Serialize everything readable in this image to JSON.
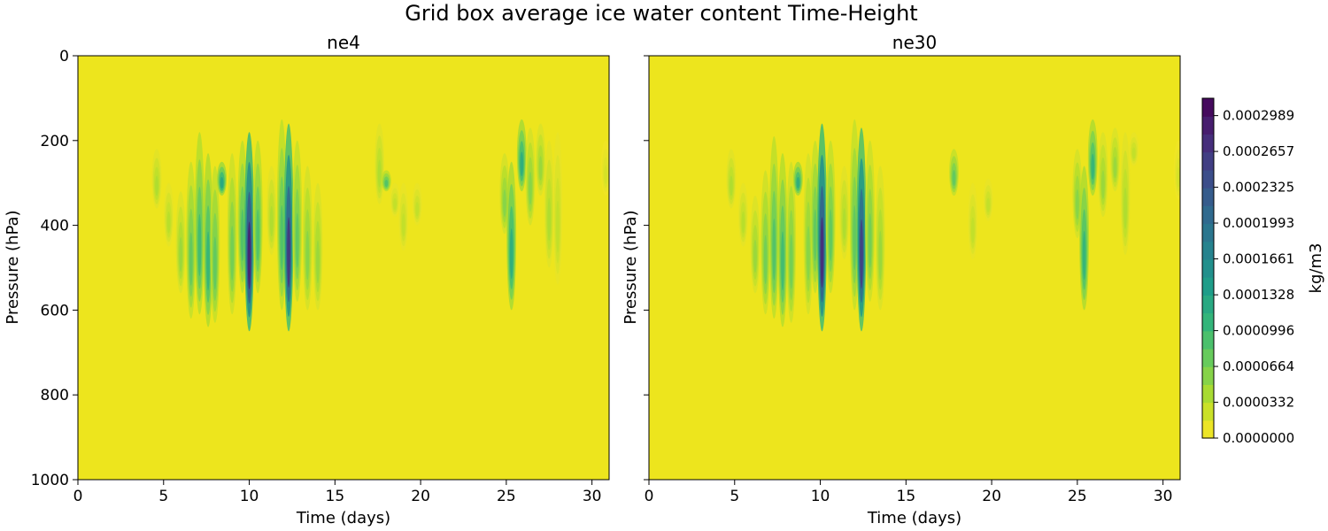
{
  "chart_data": {
    "type": "heatmap",
    "title": "Grid box average ice water content Time-Height",
    "colorbar": {
      "label": "kg/m3",
      "levels": [
        "0.0000000",
        "0.0000332",
        "0.0000664",
        "0.0000996",
        "0.0001328",
        "0.0001661",
        "0.0001993",
        "0.0002325",
        "0.0002657",
        "0.0002989"
      ],
      "level_values": [
        0.0,
        3.32e-05,
        6.64e-05,
        9.96e-05,
        0.0001328,
        0.0001661,
        0.0001993,
        0.0002325,
        0.0002657,
        0.0002989
      ],
      "max": 0.000315,
      "colormap": "viridis (reversed)"
    },
    "x_axis": {
      "label": "Time (days)",
      "lim": [
        0,
        31
      ],
      "ticks": [
        0,
        5,
        10,
        15,
        20,
        25,
        30
      ],
      "tick_labels": [
        "0",
        "5",
        "10",
        "15",
        "20",
        "25",
        "30"
      ]
    },
    "y_axis": {
      "label": "Pressure (hPa)",
      "lim": [
        0,
        1000
      ],
      "inverted": true,
      "ticks": [
        0,
        200,
        400,
        600,
        800,
        1000
      ],
      "tick_labels": [
        "0",
        "200",
        "400",
        "600",
        "800",
        "1000"
      ]
    },
    "background_value": 0.0,
    "panels": [
      {
        "name": "ne4",
        "features": [
          {
            "x": 4.6,
            "p": [
              220,
              360
            ],
            "peak": 4e-05
          },
          {
            "x": 5.3,
            "p": [
              300,
              450
            ],
            "peak": 3.5e-05
          },
          {
            "x": 6.0,
            "p": [
              320,
              560
            ],
            "peak": 5e-05
          },
          {
            "x": 6.6,
            "p": [
              250,
              620
            ],
            "peak": 8e-05
          },
          {
            "x": 7.1,
            "p": [
              180,
              610
            ],
            "peak": 0.0001
          },
          {
            "x": 7.6,
            "p": [
              230,
              640
            ],
            "peak": 0.00011
          },
          {
            "x": 8.0,
            "p": [
              260,
              630
            ],
            "peak": 8e-05
          },
          {
            "x": 8.4,
            "p": [
              250,
              330
            ],
            "peak": 0.00013
          },
          {
            "x": 9.0,
            "p": [
              230,
              610
            ],
            "peak": 7e-05
          },
          {
            "x": 9.6,
            "p": [
              200,
              560
            ],
            "peak": 9e-05
          },
          {
            "x": 10.0,
            "p": [
              180,
              650
            ],
            "peak": 0.00029
          },
          {
            "x": 10.5,
            "p": [
              200,
              560
            ],
            "peak": 9e-05
          },
          {
            "x": 11.3,
            "p": [
              260,
              470
            ],
            "peak": 4e-05
          },
          {
            "x": 11.9,
            "p": [
              150,
              600
            ],
            "peak": 9e-05
          },
          {
            "x": 12.3,
            "p": [
              160,
              650
            ],
            "peak": 0.00027
          },
          {
            "x": 12.8,
            "p": [
              200,
              580
            ],
            "peak": 8e-05
          },
          {
            "x": 13.4,
            "p": [
              260,
              600
            ],
            "peak": 6e-05
          },
          {
            "x": 14.0,
            "p": [
              300,
              600
            ],
            "peak": 5e-05
          },
          {
            "x": 17.6,
            "p": [
              160,
              350
            ],
            "peak": 4e-05
          },
          {
            "x": 18.0,
            "p": [
              270,
              320
            ],
            "peak": 9e-05
          },
          {
            "x": 18.5,
            "p": [
              300,
              380
            ],
            "peak": 3e-05
          },
          {
            "x": 19.0,
            "p": [
              300,
              460
            ],
            "peak": 3e-05
          },
          {
            "x": 19.8,
            "p": [
              300,
              400
            ],
            "peak": 3e-05
          },
          {
            "x": 24.9,
            "p": [
              230,
              420
            ],
            "peak": 6e-05
          },
          {
            "x": 25.3,
            "p": [
              250,
              600
            ],
            "peak": 0.00012
          },
          {
            "x": 25.9,
            "p": [
              150,
              320
            ],
            "peak": 0.00012
          },
          {
            "x": 26.4,
            "p": [
              170,
              400
            ],
            "peak": 6e-05
          },
          {
            "x": 27.0,
            "p": [
              160,
              330
            ],
            "peak": 5e-05
          },
          {
            "x": 27.5,
            "p": [
              200,
              500
            ],
            "peak": 4e-05
          },
          {
            "x": 28.0,
            "p": [
              180,
              540
            ],
            "peak": 3e-05
          },
          {
            "x": 30.8,
            "p": [
              200,
              330
            ],
            "peak": 2e-05
          }
        ]
      },
      {
        "name": "ne30",
        "features": [
          {
            "x": 4.8,
            "p": [
              220,
              360
            ],
            "peak": 4e-05
          },
          {
            "x": 5.5,
            "p": [
              300,
              450
            ],
            "peak": 3.5e-05
          },
          {
            "x": 6.2,
            "p": [
              330,
              560
            ],
            "peak": 5e-05
          },
          {
            "x": 6.8,
            "p": [
              270,
              610
            ],
            "peak": 7e-05
          },
          {
            "x": 7.3,
            "p": [
              190,
              620
            ],
            "peak": 9e-05
          },
          {
            "x": 7.8,
            "p": [
              230,
              640
            ],
            "peak": 0.0001
          },
          {
            "x": 8.3,
            "p": [
              250,
              630
            ],
            "peak": 7e-05
          },
          {
            "x": 8.7,
            "p": [
              250,
              330
            ],
            "peak": 0.00012
          },
          {
            "x": 9.3,
            "p": [
              230,
              610
            ],
            "peak": 6e-05
          },
          {
            "x": 9.7,
            "p": [
              200,
              560
            ],
            "peak": 8e-05
          },
          {
            "x": 10.1,
            "p": [
              160,
              650
            ],
            "peak": 0.00028
          },
          {
            "x": 10.6,
            "p": [
              200,
              560
            ],
            "peak": 8e-05
          },
          {
            "x": 11.4,
            "p": [
              260,
              480
            ],
            "peak": 4e-05
          },
          {
            "x": 12.0,
            "p": [
              150,
              600
            ],
            "peak": 8e-05
          },
          {
            "x": 12.4,
            "p": [
              170,
              650
            ],
            "peak": 0.00026
          },
          {
            "x": 12.9,
            "p": [
              200,
              580
            ],
            "peak": 7e-05
          },
          {
            "x": 13.5,
            "p": [
              260,
              600
            ],
            "peak": 5e-05
          },
          {
            "x": 17.8,
            "p": [
              220,
              330
            ],
            "peak": 8e-05
          },
          {
            "x": 18.9,
            "p": [
              300,
              480
            ],
            "peak": 3e-05
          },
          {
            "x": 19.8,
            "p": [
              290,
              390
            ],
            "peak": 3e-05
          },
          {
            "x": 25.0,
            "p": [
              220,
              430
            ],
            "peak": 6e-05
          },
          {
            "x": 25.4,
            "p": [
              260,
              600
            ],
            "peak": 0.00011
          },
          {
            "x": 25.9,
            "p": [
              150,
              330
            ],
            "peak": 0.00011
          },
          {
            "x": 26.5,
            "p": [
              180,
              380
            ],
            "peak": 5e-05
          },
          {
            "x": 27.2,
            "p": [
              170,
              320
            ],
            "peak": 5e-05
          },
          {
            "x": 27.8,
            "p": [
              180,
              470
            ],
            "peak": 4e-05
          },
          {
            "x": 28.3,
            "p": [
              180,
              260
            ],
            "peak": 3e-05
          },
          {
            "x": 30.9,
            "p": [
              200,
              340
            ],
            "peak": 2e-05
          }
        ]
      }
    ]
  }
}
